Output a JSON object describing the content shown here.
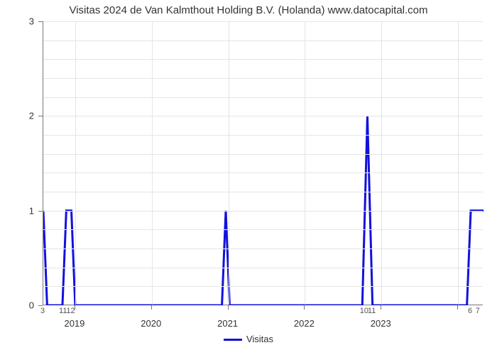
{
  "title": "Visitas 2024 de Van Kalmthout Holding B.V. (Holanda) www.datocapital.com",
  "chart": {
    "type": "line",
    "background_color": "#ffffff",
    "grid_color": "#e5e5e5",
    "axis_color": "#777777",
    "series_color": "#1111dd",
    "line_width": 3,
    "title_fontsize": 15,
    "label_fontsize": 13,
    "minor_label_fontsize": 11,
    "x_domain_months": [
      0,
      69
    ],
    "ylim": [
      0,
      3
    ],
    "ytick_step": 1,
    "y_minor_count": 4,
    "year_ticks": [
      {
        "month_index": 5,
        "label": "2019"
      },
      {
        "month_index": 17,
        "label": "2020"
      },
      {
        "month_index": 29,
        "label": "2021"
      },
      {
        "month_index": 41,
        "label": "2022"
      },
      {
        "month_index": 53,
        "label": "2023"
      },
      {
        "month_index": 65,
        "label": ""
      }
    ],
    "minor_month_labels": [
      {
        "month_index": 0,
        "label": "3"
      },
      {
        "month_index": 3.2,
        "label": "11"
      },
      {
        "month_index": 4.4,
        "label": "12"
      },
      {
        "month_index": 50.4,
        "label": "10"
      },
      {
        "month_index": 51.6,
        "label": "11"
      },
      {
        "month_index": 67.0,
        "label": "6"
      },
      {
        "month_index": 68.2,
        "label": "7"
      }
    ],
    "points": [
      {
        "x": 0.0,
        "y": 1
      },
      {
        "x": 0.6,
        "y": 0
      },
      {
        "x": 3.0,
        "y": 0
      },
      {
        "x": 3.6,
        "y": 1
      },
      {
        "x": 4.4,
        "y": 1
      },
      {
        "x": 5.0,
        "y": 0
      },
      {
        "x": 28.0,
        "y": 0
      },
      {
        "x": 28.6,
        "y": 1
      },
      {
        "x": 29.2,
        "y": 0
      },
      {
        "x": 50.0,
        "y": 0
      },
      {
        "x": 50.8,
        "y": 2
      },
      {
        "x": 51.6,
        "y": 0
      },
      {
        "x": 66.4,
        "y": 0
      },
      {
        "x": 67.0,
        "y": 1
      },
      {
        "x": 69.0,
        "y": 1
      }
    ]
  },
  "legend": {
    "label": "Visitas"
  }
}
